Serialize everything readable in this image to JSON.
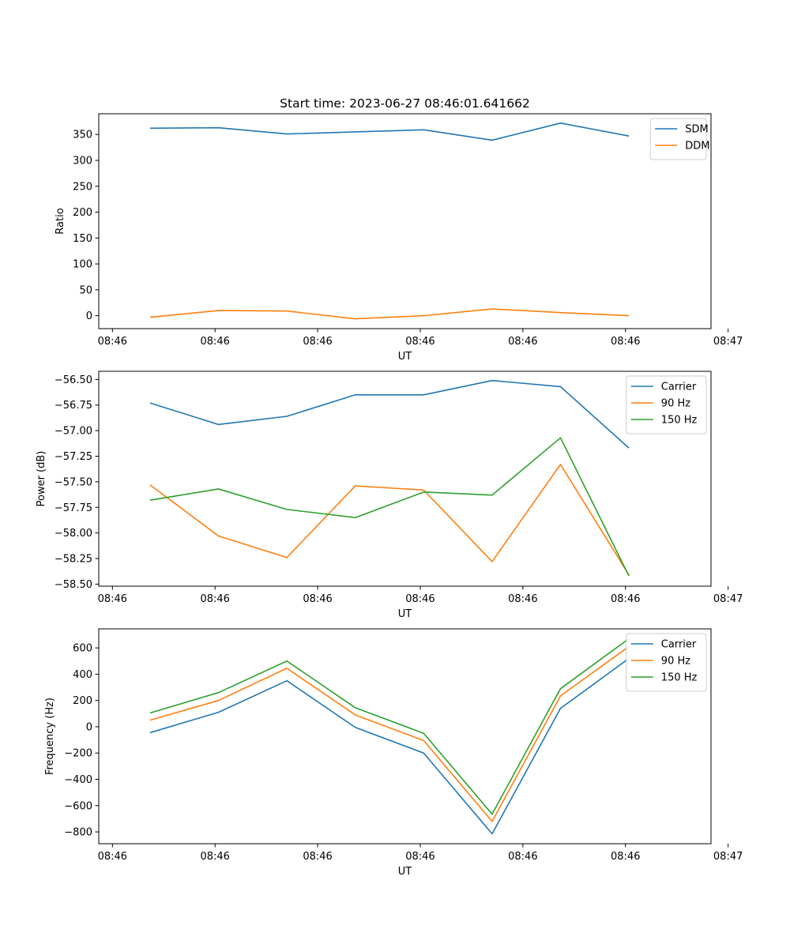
{
  "figure": {
    "title": "Start time: 2023-06-27 08:46:01.641662"
  },
  "chart_data": [
    {
      "type": "line",
      "title": "",
      "xlabel": "UT",
      "ylabel": "Ratio",
      "x": [
        1,
        2,
        3,
        4,
        5,
        6,
        7,
        8
      ],
      "xlim": [
        0.25,
        9.2
      ],
      "x_ticks": [
        0.45,
        1.95,
        3.45,
        4.95,
        6.45,
        7.95,
        9.45
      ],
      "x_tick_labels": [
        "08:46",
        "08:46",
        "08:46",
        "08:46",
        "08:46",
        "08:46",
        "08:47"
      ],
      "ylim": [
        -25,
        390
      ],
      "y_ticks": [
        0,
        50,
        100,
        150,
        200,
        250,
        300,
        350
      ],
      "y_tick_labels": [
        "0",
        "50",
        "100",
        "150",
        "200",
        "250",
        "300",
        "350"
      ],
      "legend_position": "top-right",
      "series": [
        {
          "name": "SDM",
          "color": "#1f77b4",
          "values": [
            362,
            363,
            351,
            355,
            359,
            339,
            372,
            347
          ]
        },
        {
          "name": "DDM",
          "color": "#ff7f0e",
          "values": [
            -3,
            10,
            9,
            -6,
            0,
            13,
            6,
            0
          ]
        }
      ]
    },
    {
      "type": "line",
      "title": "",
      "xlabel": "UT",
      "ylabel": "Power (dB)",
      "x": [
        1,
        2,
        3,
        4,
        5,
        6,
        7,
        8
      ],
      "xlim": [
        0.25,
        9.2
      ],
      "x_ticks": [
        0.45,
        1.95,
        3.45,
        4.95,
        6.45,
        7.95,
        9.45
      ],
      "x_tick_labels": [
        "08:46",
        "08:46",
        "08:46",
        "08:46",
        "08:46",
        "08:46",
        "08:47"
      ],
      "ylim": [
        -58.52,
        -56.42
      ],
      "y_ticks": [
        -58.5,
        -58.25,
        -58.0,
        -57.75,
        -57.5,
        -57.25,
        -57.0,
        -56.75,
        -56.5
      ],
      "y_tick_labels": [
        "−58.50",
        "−58.25",
        "−58.00",
        "−57.75",
        "−57.50",
        "−57.25",
        "−57.00",
        "−56.75",
        "−56.50"
      ],
      "legend_position": "top-right",
      "series": [
        {
          "name": "Carrier",
          "color": "#1f77b4",
          "values": [
            -56.73,
            -56.94,
            -56.86,
            -56.65,
            -56.65,
            -56.51,
            -56.57,
            -57.17
          ]
        },
        {
          "name": "90 Hz",
          "color": "#ff7f0e",
          "values": [
            -57.53,
            -58.03,
            -58.24,
            -57.54,
            -57.58,
            -58.28,
            -57.33,
            -58.41
          ]
        },
        {
          "name": "150 Hz",
          "color": "#2ca02c",
          "values": [
            -57.68,
            -57.57,
            -57.77,
            -57.85,
            -57.6,
            -57.63,
            -57.07,
            -58.42
          ]
        }
      ]
    },
    {
      "type": "line",
      "title": "",
      "xlabel": "UT",
      "ylabel": "Frequency (Hz)",
      "x": [
        1,
        2,
        3,
        4,
        5,
        6,
        7,
        8
      ],
      "xlim": [
        0.25,
        9.2
      ],
      "x_ticks": [
        0.45,
        1.95,
        3.45,
        4.95,
        6.45,
        7.95,
        9.45
      ],
      "x_tick_labels": [
        "08:46",
        "08:46",
        "08:46",
        "08:46",
        "08:46",
        "08:46",
        "08:47"
      ],
      "ylim": [
        -890,
        745
      ],
      "y_ticks": [
        -800,
        -600,
        -400,
        -200,
        0,
        200,
        400,
        600
      ],
      "y_tick_labels": [
        "−800",
        "−600",
        "−400",
        "−200",
        "0",
        "200",
        "400",
        "600"
      ],
      "legend_position": "top-right",
      "series": [
        {
          "name": "Carrier",
          "color": "#1f77b4",
          "values": [
            -45,
            110,
            350,
            -5,
            -200,
            -815,
            140,
            520
          ]
        },
        {
          "name": "90 Hz",
          "color": "#ff7f0e",
          "values": [
            50,
            200,
            445,
            90,
            -105,
            -720,
            235,
            610
          ]
        },
        {
          "name": "150 Hz",
          "color": "#2ca02c",
          "values": [
            105,
            260,
            500,
            145,
            -50,
            -665,
            290,
            670
          ]
        }
      ]
    }
  ]
}
